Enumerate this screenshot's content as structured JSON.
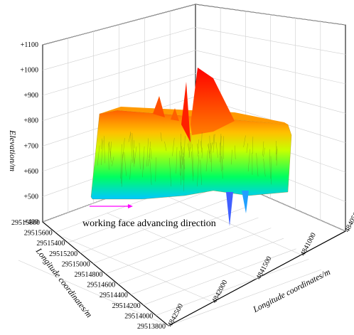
{
  "chart_data": {
    "type": "surface3d",
    "title": "",
    "zlabel": "Elevation/m",
    "xlabel": "Longitude coordinates/m",
    "ylabel": "Longitude coordinates/m",
    "zlim": [
      400,
      1100
    ],
    "z_ticks": [
      "+400",
      "+500",
      "+600",
      "+700",
      "+800",
      "+900",
      "+1000",
      "+1100"
    ],
    "x_ticks": [
      "29515800",
      "29515600",
      "29515400",
      "29515200",
      "29515000",
      "29514800",
      "29514600",
      "29514400",
      "29514200",
      "29514000",
      "29513800"
    ],
    "y_ticks": [
      "4840500",
      "4841000",
      "4841500",
      "4842000",
      "4842500"
    ],
    "annotation": "working face advancing direction",
    "arrow_color": "#ff00ff",
    "grid": true,
    "colormap": [
      "#00c8ff",
      "#00ff60",
      "#c8ff00",
      "#ffe000",
      "#ff8000",
      "#ff0000"
    ]
  }
}
